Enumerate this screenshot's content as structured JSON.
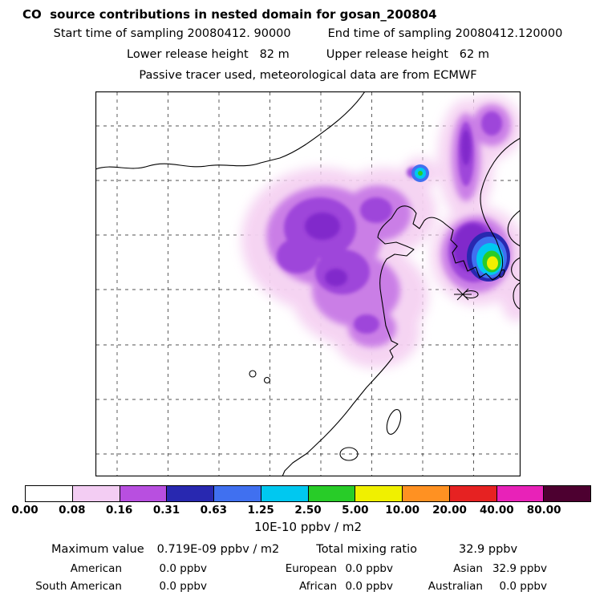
{
  "title": "CO  source contributions in nested domain for gosan_200804",
  "header": {
    "start_time": "Start time of sampling 20080412. 90000",
    "end_time": "End time of sampling 20080412.120000",
    "lower_release": "Lower release height   82 m",
    "upper_release": "Upper release height   62 m",
    "tracer_note": "Passive tracer used, meteorological data are from ECMWF"
  },
  "colorbar": {
    "tick_labels": [
      "0.00",
      "0.08",
      "0.16",
      "0.31",
      "0.63",
      "1.25",
      "2.50",
      "5.00",
      "10.00",
      "20.00",
      "40.00",
      "80.00"
    ],
    "colors": [
      "#ffffff",
      "#f3cdf3",
      "#b84fe0",
      "#2828b0",
      "#4070f0",
      "#00c8f0",
      "#28cc28",
      "#f0f000",
      "#ff9122",
      "#e62222",
      "#e822b8",
      "#4d0030"
    ],
    "units_label": "10E-10 ppbv / m2"
  },
  "stats": {
    "maximum_label": "Maximum value",
    "maximum_value": "0.719E-09 ppbv / m2",
    "total_label": "Total mixing ratio",
    "total_value": "32.9 ppbv",
    "contributions": [
      {
        "region": "American",
        "value": "0.0 ppbv"
      },
      {
        "region": "European",
        "value": "0.0 ppbv"
      },
      {
        "region": "Asian",
        "value": "32.9 ppbv"
      },
      {
        "region": "South American",
        "value": "0.0 ppbv"
      },
      {
        "region": "African",
        "value": "0.0 ppbv"
      },
      {
        "region": "Australian",
        "value": "0.0 ppbv"
      }
    ]
  },
  "chart_data": {
    "type": "heatmap",
    "title": "CO  source contributions in nested domain for gosan_200804",
    "subtitle_lines": [
      "Start time of sampling 20080412. 90000   End time of sampling 20080412.120000",
      "Lower release height 82 m   Upper release height 62 m",
      "Passive tracer used, meteorological data are from ECMWF"
    ],
    "units": "10E-10 ppbv / m2",
    "colorbar": {
      "boundaries": [
        0.0,
        0.08,
        0.16,
        0.31,
        0.63,
        1.25,
        2.5,
        5.0,
        10.0,
        20.0,
        40.0,
        80.0
      ],
      "colors": [
        "#ffffff",
        "#f3cdf3",
        "#b84fe0",
        "#2828b0",
        "#4070f0",
        "#00c8f0",
        "#28cc28",
        "#f0f000",
        "#ff9122",
        "#e62222",
        "#e822b8",
        "#4d0030"
      ]
    },
    "maximum_value": "0.719E-09 ppbv / m2",
    "total_mixing_ratio_ppbv": 32.9,
    "regional_contributions_ppbv": {
      "American": 0.0,
      "European": 0.0,
      "Asian": 32.9,
      "South American": 0.0,
      "African": 0.0,
      "Australian": 0.0
    },
    "station": "gosan_200804",
    "map_features": [
      "East Asia coastlines",
      "dashed lat-lon grid",
      "purple plume over eastern China",
      "high-value hotspot (blue-cyan-green-yellow) over southern Korea",
      "asterisk receptor marker near Jeju/Gosan"
    ]
  }
}
